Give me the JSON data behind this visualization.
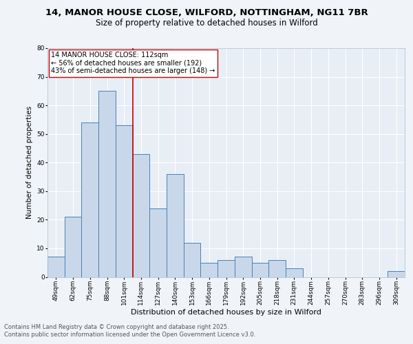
{
  "title_line1": "14, MANOR HOUSE CLOSE, WILFORD, NOTTINGHAM, NG11 7BR",
  "title_line2": "Size of property relative to detached houses in Wilford",
  "xlabel": "Distribution of detached houses by size in Wilford",
  "ylabel": "Number of detached properties",
  "categories": [
    "49sqm",
    "62sqm",
    "75sqm",
    "88sqm",
    "101sqm",
    "114sqm",
    "127sqm",
    "140sqm",
    "153sqm",
    "166sqm",
    "179sqm",
    "192sqm",
    "205sqm",
    "218sqm",
    "231sqm",
    "244sqm",
    "257sqm",
    "270sqm",
    "283sqm",
    "296sqm",
    "309sqm"
  ],
  "values": [
    7,
    21,
    54,
    65,
    53,
    43,
    24,
    36,
    12,
    5,
    6,
    7,
    5,
    6,
    3,
    0,
    0,
    0,
    0,
    0,
    2
  ],
  "bar_color": "#c8d8ea",
  "bar_edge_color": "#4a7fb5",
  "vline_x": 4.5,
  "vline_color": "#cc0000",
  "annotation_title": "14 MANOR HOUSE CLOSE: 112sqm",
  "annotation_line1": "← 56% of detached houses are smaller (192)",
  "annotation_line2": "43% of semi-detached houses are larger (148) →",
  "annotation_box_color": "#ffffff",
  "annotation_box_edge": "#cc0000",
  "ylim": [
    0,
    80
  ],
  "yticks": [
    0,
    10,
    20,
    30,
    40,
    50,
    60,
    70,
    80
  ],
  "footer_line1": "Contains HM Land Registry data © Crown copyright and database right 2025.",
  "footer_line2": "Contains public sector information licensed under the Open Government Licence v3.0.",
  "bg_color": "#f0f4f8",
  "plot_bg_color": "#e8eef5",
  "title_fontsize": 9.5,
  "subtitle_fontsize": 8.5,
  "xlabel_fontsize": 8,
  "ylabel_fontsize": 7.5,
  "tick_fontsize": 6.5,
  "annotation_fontsize": 7,
  "footer_fontsize": 6
}
